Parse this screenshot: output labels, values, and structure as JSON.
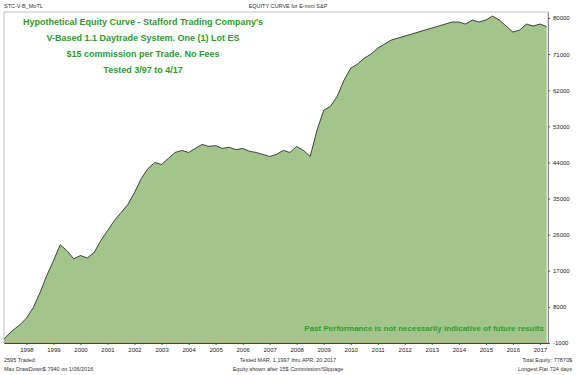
{
  "chart_data": {
    "type": "area",
    "title": "EQUITY CURVE for E-mini S&P",
    "subtitle": "STC-V-B_MoTL",
    "color": "#a3c48a",
    "grid": false,
    "annotations": {
      "system": [
        "Hypothetical Equity Curve - Stafford Trading Company's",
        "V-Based 1.1 Daytrade System. One (1) Lot ES",
        "$15 commission per Trade. No Fees",
        "Tested 3/97 to 4/17"
      ],
      "disclaimer": "Past Performance is not necessarily indicative of future results",
      "footer": [
        "2595 Traded",
        "Tested MAR. 1,1997 thru APR. 20,2017",
        "Total Equity: 77870$",
        "Max DrawDown$ 7940 on 1/06/2016",
        "Equity shown after 15$ Commission/Slippage",
        "Longest Flat 724 days"
      ]
    },
    "x": [
      1997.17,
      1997.25,
      1997.5,
      1997.75,
      1998.0,
      1998.25,
      1998.5,
      1998.75,
      1999.0,
      1999.25,
      1999.5,
      1999.75,
      2000.0,
      2000.25,
      2000.5,
      2000.75,
      2001.0,
      2001.25,
      2001.5,
      2001.75,
      2002.0,
      2002.25,
      2002.5,
      2002.75,
      2003.0,
      2003.25,
      2003.5,
      2003.75,
      2004.0,
      2004.25,
      2004.5,
      2004.75,
      2005.0,
      2005.25,
      2005.5,
      2005.75,
      2006.0,
      2006.25,
      2006.5,
      2006.75,
      2007.0,
      2007.25,
      2007.5,
      2007.75,
      2008.0,
      2008.25,
      2008.5,
      2008.75,
      2009.0,
      2009.25,
      2009.5,
      2009.75,
      2010.0,
      2010.25,
      2010.5,
      2010.75,
      2011.0,
      2011.25,
      2011.5,
      2011.75,
      2012.0,
      2012.25,
      2012.5,
      2012.75,
      2013.0,
      2013.25,
      2013.5,
      2013.75,
      2014.0,
      2014.25,
      2014.5,
      2014.75,
      2015.0,
      2015.25,
      2015.5,
      2015.75,
      2016.0,
      2016.25,
      2016.5,
      2016.75,
      2017.0,
      2017.25
    ],
    "values": [
      0,
      600,
      2200,
      3500,
      5200,
      7800,
      11500,
      15800,
      19500,
      23500,
      22000,
      20000,
      20800,
      20200,
      21500,
      24500,
      27000,
      29500,
      31500,
      33500,
      36500,
      40000,
      42500,
      44000,
      43500,
      45000,
      46500,
      47000,
      46500,
      47500,
      48500,
      48000,
      48200,
      47500,
      47800,
      47200,
      47500,
      46800,
      46500,
      46000,
      45500,
      46000,
      47000,
      46500,
      48000,
      47000,
      45500,
      52000,
      57000,
      58000,
      60500,
      64500,
      67500,
      68500,
      70000,
      71000,
      72500,
      73500,
      74500,
      75000,
      75500,
      76000,
      76500,
      77000,
      77500,
      78000,
      78500,
      79000,
      79000,
      78500,
      79500,
      79000,
      79500,
      80500,
      79500,
      78000,
      76500,
      77000,
      78500,
      78000,
      78500,
      77870
    ],
    "xlim": [
      1997.17,
      2017.3
    ],
    "xticks": [
      1998,
      1999,
      2000,
      2001,
      2002,
      2003,
      2004,
      2005,
      2006,
      2007,
      2008,
      2009,
      2010,
      2011,
      2012,
      2013,
      2014,
      2015,
      2016,
      2017
    ],
    "ylim": [
      -1000,
      81500
    ],
    "yticks": [
      -1000,
      8000,
      17000,
      26000,
      35000,
      44000,
      53000,
      62000,
      71000,
      80000
    ]
  }
}
